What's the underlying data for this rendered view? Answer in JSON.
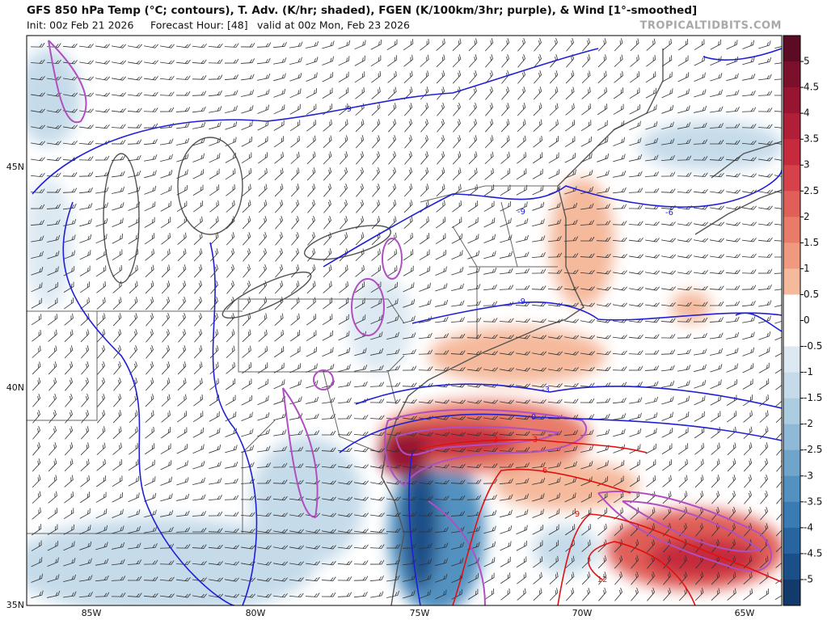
{
  "header": {
    "title": "GFS 850 hPa Temp (°C; contours), T. Adv. (K/hr; shaded), FGEN (K/100km/3hr; purple), & Wind [1°-smoothed]",
    "init": "Init: 00z Feb 21 2026",
    "forecast_hour": "Forecast Hour: [48]",
    "valid": "valid at 00z Mon, Feb 23 2026",
    "watermark": "TROPICALTIDBITS.COM"
  },
  "map": {
    "lon_labels": [
      "85W",
      "80W",
      "75W",
      "70W",
      "65W"
    ],
    "lat_labels": [
      "45N",
      "40N",
      "35N"
    ],
    "contour_labels": [
      -9,
      -9,
      -9,
      -6,
      -3,
      0,
      3,
      3,
      6,
      9,
      12
    ]
  },
  "colorbar": {
    "ticks": [
      5,
      4.5,
      4,
      3.5,
      3,
      2.5,
      2,
      1.5,
      1,
      0.5,
      0,
      -0.5,
      -1,
      -1.5,
      -2,
      -2.5,
      -3,
      -3.5,
      -4,
      -4.5,
      -5
    ],
    "colors": [
      "#5b0b24",
      "#7c0f2b",
      "#981532",
      "#b01e37",
      "#c62b3d",
      "#d6424a",
      "#e05f58",
      "#e87c69",
      "#ef9a7f",
      "#f5b99c",
      "#ffffff",
      "#ffffff",
      "#dde9f2",
      "#c6dbea",
      "#accce0",
      "#8fb9d6",
      "#70a5cb",
      "#5391c0",
      "#3a7bb3",
      "#2865a0",
      "#1b4f87",
      "#123a6a"
    ]
  }
}
